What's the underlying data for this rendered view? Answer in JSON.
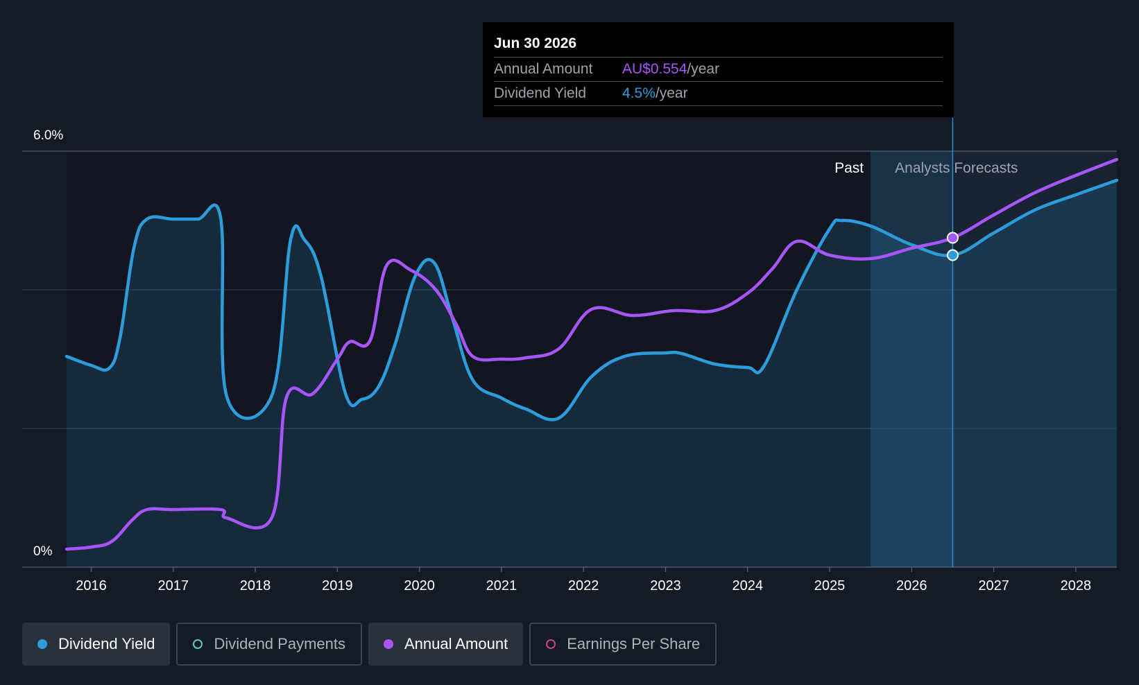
{
  "tooltip": {
    "date": "Jun 30 2026",
    "rows": [
      {
        "label": "Annual Amount",
        "value": "AU$0.554",
        "unit": "/year",
        "color": "#a855f7"
      },
      {
        "label": "Dividend Yield",
        "value": "4.5%",
        "unit": "/year",
        "color": "#2d9cdb"
      }
    ]
  },
  "periods": {
    "past": "Past",
    "forecast": "Analysts Forecasts"
  },
  "legend": [
    {
      "label": "Dividend Yield",
      "active": true,
      "color": "#2d9cdb",
      "filled": true
    },
    {
      "label": "Dividend Payments",
      "active": false,
      "color": "#5ec8c0",
      "filled": false
    },
    {
      "label": "Annual Amount",
      "active": true,
      "color": "#a855f7",
      "filled": true
    },
    {
      "label": "Earnings Per Share",
      "active": false,
      "color": "#c2457a",
      "filled": false
    }
  ],
  "chart_data": {
    "type": "line",
    "y_labels": [
      "6.0%",
      "0%"
    ],
    "ylim": [
      0,
      6.0
    ],
    "xlim": [
      2015.7,
      2028.5
    ],
    "x_ticks": [
      "2016",
      "2017",
      "2018",
      "2019",
      "2020",
      "2021",
      "2022",
      "2023",
      "2024",
      "2025",
      "2026",
      "2027",
      "2028"
    ],
    "forecast_start": 2025.5,
    "highlight_x": 2026.5,
    "grid": true,
    "series": [
      {
        "name": "Dividend Yield",
        "color": "#2d9cdb",
        "area": true,
        "points": [
          [
            2015.7,
            3.04
          ],
          [
            2016.0,
            2.91
          ],
          [
            2016.22,
            2.87
          ],
          [
            2016.35,
            3.3
          ],
          [
            2016.52,
            4.6
          ],
          [
            2016.68,
            5.02
          ],
          [
            2017.0,
            5.02
          ],
          [
            2017.3,
            5.02
          ],
          [
            2017.58,
            5.02
          ],
          [
            2017.65,
            2.47
          ],
          [
            2018.2,
            2.47
          ],
          [
            2018.43,
            4.72
          ],
          [
            2018.6,
            4.72
          ],
          [
            2018.8,
            4.2
          ],
          [
            2019.1,
            2.5
          ],
          [
            2019.3,
            2.42
          ],
          [
            2019.5,
            2.6
          ],
          [
            2019.7,
            3.2
          ],
          [
            2019.95,
            4.2
          ],
          [
            2020.18,
            4.39
          ],
          [
            2020.4,
            3.6
          ],
          [
            2020.65,
            2.7
          ],
          [
            2021.0,
            2.44
          ],
          [
            2021.3,
            2.28
          ],
          [
            2021.7,
            2.15
          ],
          [
            2022.1,
            2.75
          ],
          [
            2022.5,
            3.04
          ],
          [
            2023.0,
            3.09
          ],
          [
            2023.2,
            3.08
          ],
          [
            2023.6,
            2.93
          ],
          [
            2024.0,
            2.88
          ],
          [
            2024.2,
            2.9
          ],
          [
            2024.6,
            4.0
          ],
          [
            2025.0,
            4.88
          ],
          [
            2025.15,
            5.0
          ],
          [
            2025.5,
            4.92
          ],
          [
            2026.0,
            4.65
          ],
          [
            2026.5,
            4.5
          ],
          [
            2027.0,
            4.82
          ],
          [
            2027.5,
            5.15
          ],
          [
            2028.0,
            5.37
          ],
          [
            2028.5,
            5.58
          ]
        ]
      },
      {
        "name": "Annual Amount",
        "color": "#a855f7",
        "area": false,
        "points": [
          [
            2015.7,
            0.26
          ],
          [
            2016.0,
            0.29
          ],
          [
            2016.25,
            0.37
          ],
          [
            2016.5,
            0.68
          ],
          [
            2016.68,
            0.83
          ],
          [
            2017.0,
            0.83
          ],
          [
            2017.58,
            0.83
          ],
          [
            2017.65,
            0.71
          ],
          [
            2018.2,
            0.71
          ],
          [
            2018.38,
            2.45
          ],
          [
            2018.7,
            2.5
          ],
          [
            2019.0,
            3.0
          ],
          [
            2019.15,
            3.25
          ],
          [
            2019.4,
            3.27
          ],
          [
            2019.6,
            4.35
          ],
          [
            2019.9,
            4.28
          ],
          [
            2020.2,
            4.0
          ],
          [
            2020.45,
            3.5
          ],
          [
            2020.65,
            3.04
          ],
          [
            2021.0,
            3.0
          ],
          [
            2021.3,
            3.02
          ],
          [
            2021.7,
            3.15
          ],
          [
            2022.1,
            3.72
          ],
          [
            2022.6,
            3.63
          ],
          [
            2023.1,
            3.7
          ],
          [
            2023.6,
            3.7
          ],
          [
            2024.0,
            3.95
          ],
          [
            2024.3,
            4.3
          ],
          [
            2024.6,
            4.7
          ],
          [
            2025.0,
            4.5
          ],
          [
            2025.5,
            4.45
          ],
          [
            2026.0,
            4.6
          ],
          [
            2026.5,
            4.75
          ],
          [
            2027.0,
            5.08
          ],
          [
            2027.5,
            5.4
          ],
          [
            2028.0,
            5.65
          ],
          [
            2028.5,
            5.88
          ]
        ]
      }
    ]
  }
}
